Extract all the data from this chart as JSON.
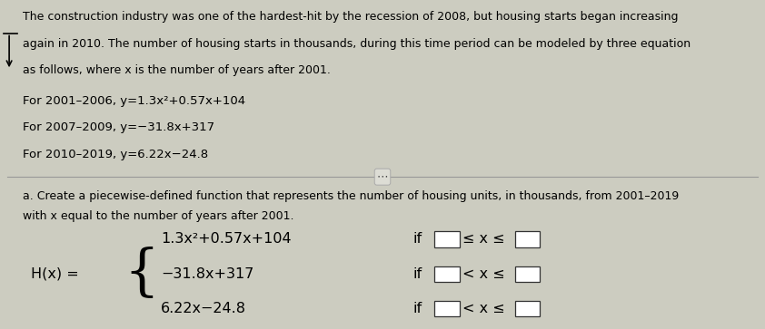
{
  "bg_top": "#e8e8dc",
  "bg_bot": "#ccccc0",
  "title_text_lines": [
    "The construction industry was one of the hardest-hit by the recession of 2008, but housing starts began increasing",
    "again in 2010. The number of housing starts in thousands, during this time period can be modeled by three equation",
    "as follows, where x is the number of years after 2001."
  ],
  "formula_lines": [
    "For 2001–2006, y=1.3x²+0.57x+104",
    "For 2007–2009, y=−31.8x+317",
    "For 2010–2019, y=6.22x−24.8"
  ],
  "part_a_line1": "a. Create a piecewise-defined function that represents the number of housing units, in thousands, from 2001–2019",
  "part_a_line2": "with x equal to the number of years after 2001.",
  "hx_label": "H(x) =",
  "piecewise_exprs": [
    "1.3x²+0.57x+104",
    "−31.8x+317",
    "6.22x−24.8"
  ],
  "piecewise_if": [
    "if",
    "if",
    "if"
  ],
  "piecewise_ineq": [
    "≤ x ≤",
    "< x ≤",
    "< x ≤"
  ],
  "font_size_body": 9.0,
  "font_size_formula": 9.5,
  "font_size_piecewise": 11.5,
  "divider_split": 0.44
}
